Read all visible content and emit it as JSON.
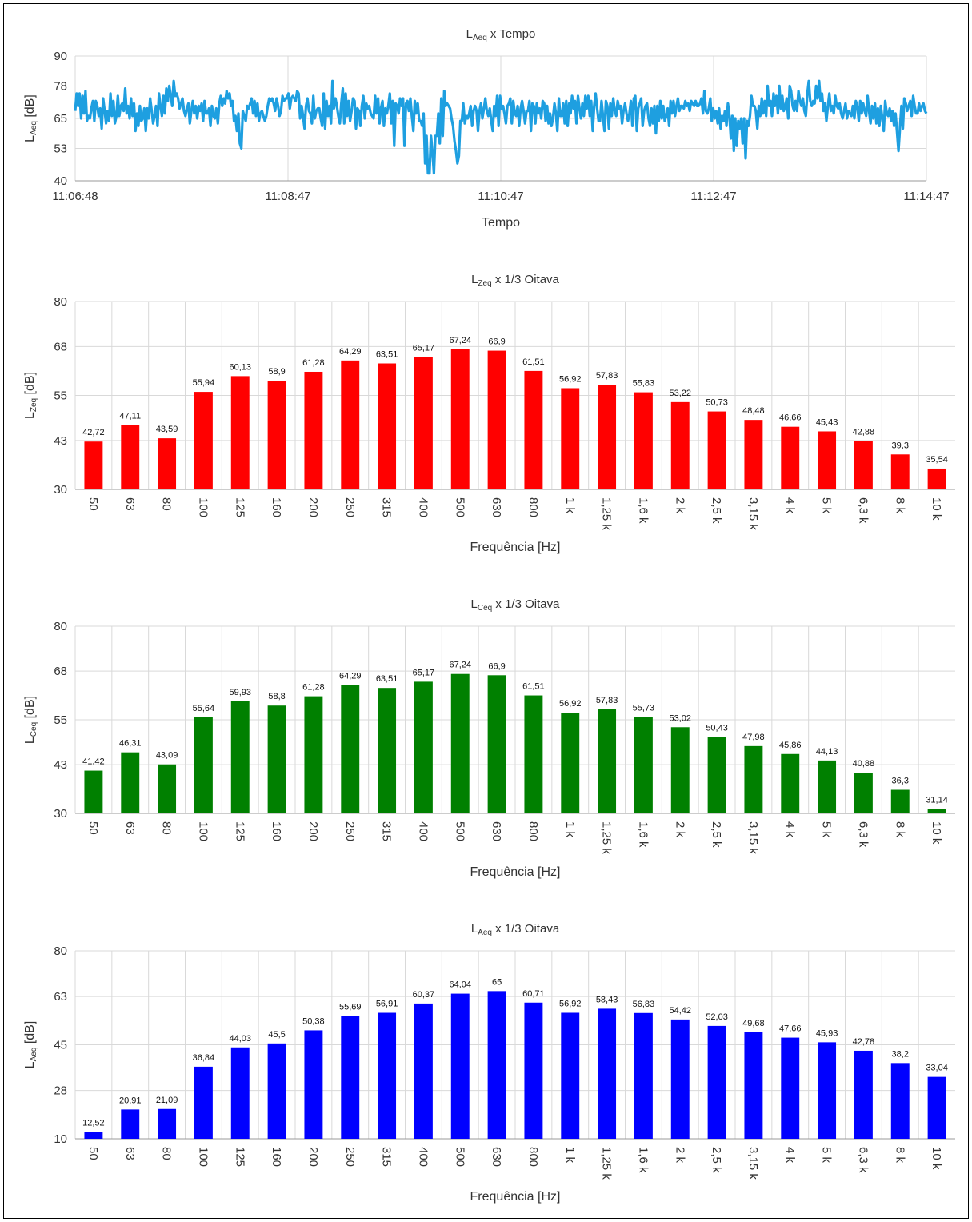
{
  "charts": [
    {
      "id": "time",
      "type": "line",
      "title_main": "L",
      "title_sub": "Aeq",
      "title_rest": " x Tempo",
      "ylabel_main": "L",
      "ylabel_sub": "Aeq",
      "ylabel_rest": " [dB]",
      "xlabel": "Tempo",
      "yticks": [
        40,
        53,
        65,
        78,
        90
      ],
      "ylim": [
        40,
        90
      ],
      "xticks": [
        "11:06:48",
        "11:08:47",
        "11:10:47",
        "11:12:47",
        "11:14:47"
      ],
      "color": "#1e9fe0",
      "x_start": "11:06:48",
      "x_end": "11:14:47",
      "values": [
        68,
        75,
        70,
        75,
        65,
        74,
        67,
        76,
        64,
        66,
        65,
        69,
        72,
        64,
        72,
        70,
        66,
        69,
        61,
        73,
        68,
        63,
        68,
        64,
        75,
        66,
        72,
        63,
        66,
        74,
        66,
        70,
        71,
        68,
        77,
        67,
        70,
        65,
        73,
        66,
        71,
        60,
        67,
        62,
        70,
        64,
        65,
        69,
        60,
        69,
        65,
        73,
        68,
        63,
        66,
        70,
        62,
        75,
        70,
        66,
        74,
        67,
        77,
        72,
        78,
        74,
        70,
        80,
        74,
        75,
        73,
        69,
        71,
        73,
        68,
        66,
        69,
        71,
        63,
        68,
        72,
        67,
        70,
        65,
        70,
        68,
        71,
        64,
        72,
        67,
        67,
        69,
        62,
        70,
        66,
        65,
        69,
        63,
        71,
        74,
        70,
        73,
        71,
        76,
        73,
        75,
        70,
        72,
        64,
        66,
        60,
        67,
        55,
        53,
        68,
        66,
        64,
        70,
        69,
        71,
        73,
        67,
        72,
        66,
        71,
        64,
        67,
        68,
        66,
        64,
        66,
        70,
        73,
        72,
        73,
        71,
        68,
        73,
        70,
        66,
        68,
        74,
        72,
        73,
        73,
        75,
        69,
        73,
        74,
        73,
        72,
        76,
        75,
        65,
        70,
        66,
        61,
        70,
        73,
        68,
        67,
        63,
        74,
        65,
        68,
        69,
        69,
        65,
        62,
        75,
        61,
        72,
        66,
        70,
        63,
        80,
        69,
        73,
        70,
        66,
        63,
        71,
        77,
        63,
        75,
        66,
        72,
        64,
        68,
        73,
        72,
        61,
        69,
        68,
        62,
        70,
        74,
        65,
        71,
        69,
        70,
        67,
        66,
        65,
        74,
        67,
        73,
        63,
        69,
        72,
        62,
        69,
        67,
        70,
        75,
        63,
        72,
        54,
        71,
        70,
        67,
        73,
        70,
        73,
        54,
        71,
        72,
        68,
        73,
        66,
        60,
        72,
        67,
        71,
        64,
        64,
        62,
        67,
        47,
        58,
        43,
        43,
        58,
        52,
        43,
        58,
        58,
        67,
        55,
        73,
        58,
        76,
        70,
        71,
        70,
        69,
        65,
        62,
        56,
        52,
        47,
        50,
        64,
        64,
        71,
        63,
        66,
        65,
        67,
        70,
        62,
        68,
        70,
        68,
        60,
        68,
        71,
        65,
        69,
        73,
        68,
        66,
        69,
        64,
        60,
        70,
        66,
        74,
        62,
        74,
        69,
        70,
        67,
        63,
        70,
        71,
        73,
        63,
        72,
        67,
        66,
        70,
        62,
        69,
        72,
        68,
        63,
        68,
        68,
        72,
        60,
        71,
        70,
        63,
        71,
        67,
        69,
        65,
        72,
        71,
        64,
        70,
        63,
        67,
        62,
        65,
        71,
        67,
        60,
        73,
        66,
        66,
        71,
        63,
        72,
        62,
        71,
        67,
        74,
        69,
        72,
        63,
        74,
        69,
        65,
        71,
        66,
        74,
        69,
        74,
        66,
        72,
        60,
        70,
        75,
        69,
        64,
        64,
        72,
        66,
        60,
        72,
        70,
        61,
        71,
        66,
        73,
        68,
        66,
        72,
        69,
        70,
        63,
        68,
        71,
        67,
        64,
        67,
        72,
        62,
        73,
        74,
        60,
        69,
        71,
        73,
        62,
        68,
        70,
        71,
        65,
        62,
        69,
        63,
        70,
        59,
        70,
        64,
        72,
        65,
        70,
        64,
        66,
        69,
        62,
        72,
        67,
        72,
        66,
        70,
        73,
        68,
        70,
        70,
        69,
        72,
        70,
        71,
        68,
        72,
        71,
        70,
        72,
        70,
        70,
        71,
        73,
        67,
        76,
        68,
        67,
        69,
        73,
        64,
        69,
        65,
        68,
        63,
        69,
        61,
        66,
        64,
        68,
        62,
        71,
        66,
        57,
        66,
        52,
        65,
        54,
        64,
        61,
        65,
        55,
        65,
        49,
        64,
        62,
        66,
        74,
        70,
        70,
        68,
        61,
        70,
        66,
        73,
        67,
        72,
        66,
        78,
        70,
        72,
        66,
        75,
        70,
        74,
        67,
        78,
        69,
        74,
        68,
        70,
        73,
        65,
        78,
        76,
        70,
        68,
        72,
        68,
        76,
        72,
        70,
        73,
        68,
        66,
        75,
        80,
        72,
        70,
        72,
        71,
        78,
        73,
        80,
        72,
        75,
        68,
        71,
        64,
        70,
        75,
        68,
        70,
        67,
        74,
        70,
        69,
        71,
        67,
        65,
        68,
        71,
        65,
        68,
        67,
        66,
        70,
        65,
        72,
        70,
        64,
        72,
        67,
        71,
        68,
        66,
        74,
        68,
        63,
        70,
        65,
        71,
        63,
        69,
        62,
        70,
        65,
        60,
        72,
        67,
        66,
        69,
        64,
        68,
        62,
        67,
        60,
        52,
        61,
        70,
        61,
        73,
        71,
        68,
        70,
        72,
        66,
        74,
        70,
        67,
        67,
        71,
        68,
        70,
        71,
        68,
        67
      ]
    },
    {
      "id": "zeq",
      "type": "bar",
      "title_main": "L",
      "title_sub": "Zeq",
      "title_rest": " x 1/3 Oitava",
      "ylabel_main": "L",
      "ylabel_sub": "Zeq",
      "ylabel_rest": " [dB]",
      "xlabel": "Frequência [Hz]",
      "yticks": [
        30,
        43,
        55,
        68,
        80
      ],
      "ylim": [
        30,
        80
      ],
      "color": "#ff0000",
      "categories": [
        "50",
        "63",
        "80",
        "100",
        "125",
        "160",
        "200",
        "250",
        "315",
        "400",
        "500",
        "630",
        "800",
        "1 k",
        "1,25 k",
        "1,6 k",
        "2 k",
        "2,5 k",
        "3,15 k",
        "4 k",
        "5 k",
        "6,3 k",
        "8 k",
        "10 k"
      ],
      "values": [
        42.72,
        47.11,
        43.59,
        55.94,
        60.13,
        58.9,
        61.28,
        64.29,
        63.51,
        65.17,
        67.24,
        66.9,
        61.51,
        56.92,
        57.83,
        55.83,
        53.22,
        50.73,
        48.48,
        46.66,
        45.43,
        42.88,
        39.3,
        35.54
      ],
      "value_labels": [
        "42,72",
        "47,11",
        "43,59",
        "55,94",
        "60,13",
        "58,9",
        "61,28",
        "64,29",
        "63,51",
        "65,17",
        "67,24",
        "66,9",
        "61,51",
        "56,92",
        "57,83",
        "55,83",
        "53,22",
        "50,73",
        "48,48",
        "46,66",
        "45,43",
        "42,88",
        "39,3",
        "35,54"
      ]
    },
    {
      "id": "ceq",
      "type": "bar",
      "title_main": "L",
      "title_sub": "Ceq",
      "title_rest": " x 1/3 Oitava",
      "ylabel_main": "L",
      "ylabel_sub": "Ceq",
      "ylabel_rest": " [dB]",
      "xlabel": "Frequência [Hz]",
      "yticks": [
        30,
        43,
        55,
        68,
        80
      ],
      "ylim": [
        30,
        80
      ],
      "color": "#008000",
      "categories": [
        "50",
        "63",
        "80",
        "100",
        "125",
        "160",
        "200",
        "250",
        "315",
        "400",
        "500",
        "630",
        "800",
        "1 k",
        "1,25 k",
        "1,6 k",
        "2 k",
        "2,5 k",
        "3,15 k",
        "4 k",
        "5 k",
        "6,3 k",
        "8 k",
        "10 k"
      ],
      "values": [
        41.42,
        46.31,
        43.09,
        55.64,
        59.93,
        58.8,
        61.28,
        64.29,
        63.51,
        65.17,
        67.24,
        66.9,
        61.51,
        56.92,
        57.83,
        55.73,
        53.02,
        50.43,
        47.98,
        45.86,
        44.13,
        40.88,
        36.3,
        31.14
      ],
      "value_labels": [
        "41,42",
        "46,31",
        "43,09",
        "55,64",
        "59,93",
        "58,8",
        "61,28",
        "64,29",
        "63,51",
        "65,17",
        "67,24",
        "66,9",
        "61,51",
        "56,92",
        "57,83",
        "55,73",
        "53,02",
        "50,43",
        "47,98",
        "45,86",
        "44,13",
        "40,88",
        "36,3",
        "31,14"
      ]
    },
    {
      "id": "aeq",
      "type": "bar",
      "title_main": "L",
      "title_sub": "Aeq",
      "title_rest": " x 1/3 Oitava",
      "ylabel_main": "L",
      "ylabel_sub": "Aeq",
      "ylabel_rest": " [dB]",
      "xlabel": "Frequência [Hz]",
      "yticks": [
        10,
        28,
        45,
        63,
        80
      ],
      "ylim": [
        10,
        80
      ],
      "color": "#0000ff",
      "categories": [
        "50",
        "63",
        "80",
        "100",
        "125",
        "160",
        "200",
        "250",
        "315",
        "400",
        "500",
        "630",
        "800",
        "1 k",
        "1,25 k",
        "1,6 k",
        "2 k",
        "2,5 k",
        "3,15 k",
        "4 k",
        "5 k",
        "6,3 k",
        "8 k",
        "10 k"
      ],
      "values": [
        12.52,
        20.91,
        21.09,
        36.84,
        44.03,
        45.5,
        50.38,
        55.69,
        56.91,
        60.37,
        64.04,
        65,
        60.71,
        56.92,
        58.43,
        56.83,
        54.42,
        52.03,
        49.68,
        47.66,
        45.93,
        42.78,
        38.2,
        33.04
      ],
      "value_labels": [
        "12,52",
        "20,91",
        "21,09",
        "36,84",
        "44,03",
        "45,5",
        "50,38",
        "55,69",
        "56,91",
        "60,37",
        "64,04",
        "65",
        "60,71",
        "56,92",
        "58,43",
        "56,83",
        "54,42",
        "52,03",
        "49,68",
        "47,66",
        "45,93",
        "42,78",
        "38,2",
        "33,04"
      ]
    }
  ]
}
